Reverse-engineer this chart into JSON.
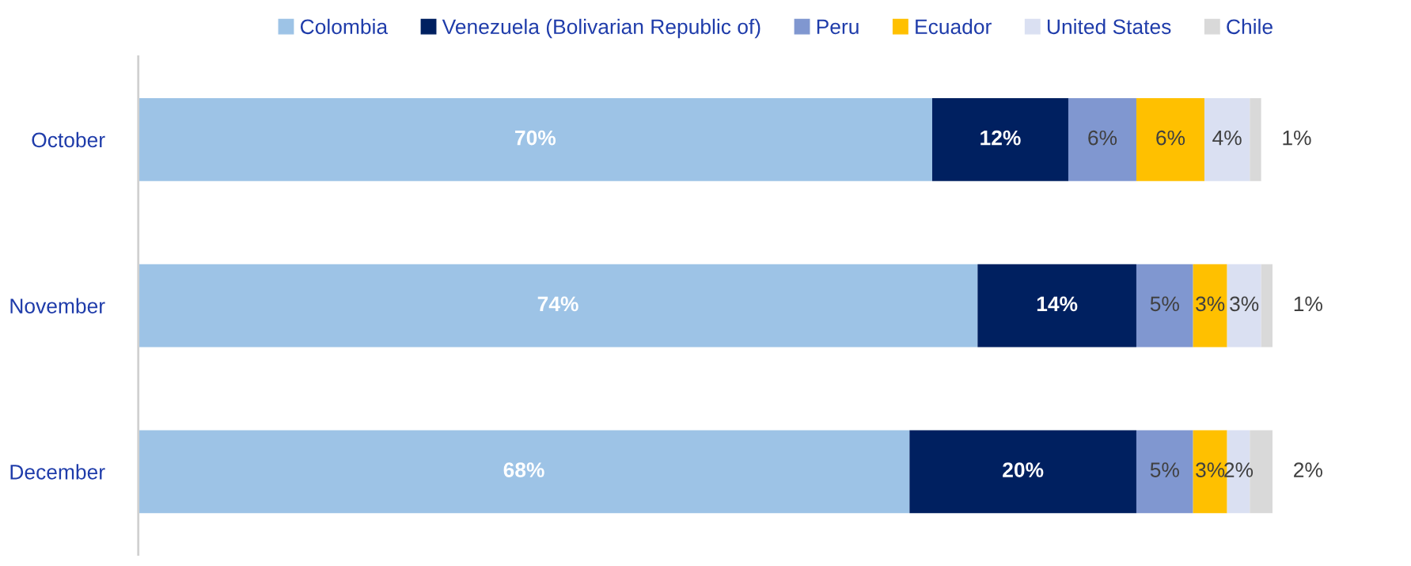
{
  "chart_data": {
    "type": "bar",
    "orientation": "horizontal",
    "stacked": true,
    "legend": "top",
    "grid": false,
    "categories": [
      "October",
      "November",
      "December"
    ],
    "series": [
      {
        "name": "Colombia",
        "color": "#9dc3e6",
        "values": [
          70,
          74,
          68
        ],
        "value_labels": [
          "70%",
          "74%",
          "68%"
        ]
      },
      {
        "name": "Venezuela (Bolivarian Republic of)",
        "color": "#002060",
        "values": [
          12,
          14,
          20
        ],
        "value_labels": [
          "12%",
          "14%",
          "20%"
        ]
      },
      {
        "name": "Peru",
        "color": "#8097d0",
        "values": [
          6,
          5,
          5
        ],
        "value_labels": [
          "6%",
          "5%",
          "5%"
        ]
      },
      {
        "name": "Ecuador",
        "color": "#ffc000",
        "values": [
          6,
          3,
          3
        ],
        "value_labels": [
          "6%",
          "3%",
          "3%"
        ]
      },
      {
        "name": "United States",
        "color": "#dae0f2",
        "values": [
          4,
          3,
          2
        ],
        "value_labels": [
          "4%",
          "3%",
          "2%"
        ]
      },
      {
        "name": "Chile",
        "color": "#d9d9d9",
        "values": [
          1,
          1,
          2
        ],
        "value_labels": [
          "1%",
          "1%",
          "2%"
        ]
      }
    ]
  }
}
